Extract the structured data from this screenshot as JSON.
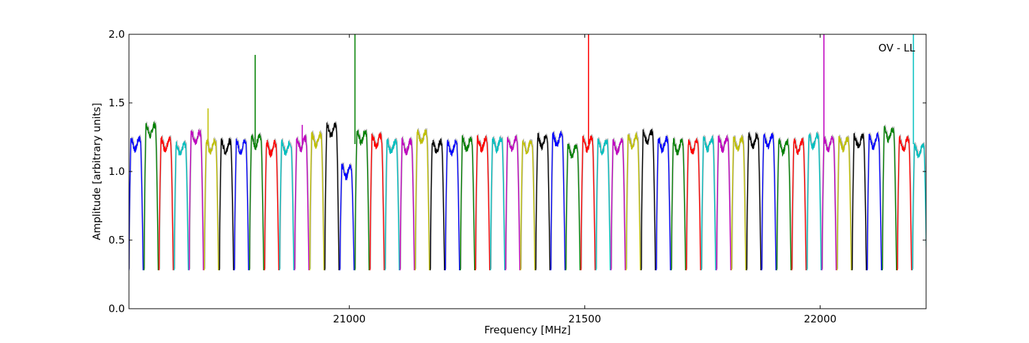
{
  "chart_data": {
    "type": "line",
    "xlabel": "Frequency [MHz]",
    "ylabel": "Amplitude [arbitrary units]",
    "annotation": "OV - LL",
    "annotation_position": "top-right",
    "xlim": [
      20532,
      22225
    ],
    "ylim": [
      0.0,
      2.0
    ],
    "xticks": [
      21000,
      21500,
      22000
    ],
    "xtick_labels": [
      "21000",
      "21500",
      "22000"
    ],
    "yticks": [
      0.0,
      0.5,
      1.0,
      1.5,
      2.0
    ],
    "ytick_labels": [
      "0.0",
      "0.5",
      "1.0",
      "1.5",
      "2.0"
    ],
    "grid": false,
    "legend": false,
    "background_series_color": "#bbbbbb",
    "color_cycle": [
      "#0000ff",
      "#008000",
      "#ff0000",
      "#00bfbf",
      "#bf00bf",
      "#bfbf00",
      "#000000"
    ],
    "channel_width_mhz": 32,
    "band_start_mhz": [
      20532,
      20564,
      20596,
      20628,
      20660,
      20692,
      20724,
      20756,
      20788,
      20820,
      20852,
      20884,
      20916,
      20948,
      20980,
      21012,
      21044,
      21076,
      21108,
      21140,
      21172,
      21204,
      21236,
      21268,
      21300,
      21332,
      21364,
      21396,
      21428,
      21460,
      21492,
      21524,
      21556,
      21588,
      21620,
      21652,
      21684,
      21716,
      21748,
      21780,
      21812,
      21844,
      21876,
      21908,
      21940,
      21972,
      22004,
      22036,
      22068,
      22100,
      22132,
      22164,
      22196
    ],
    "band_plateau": [
      1.2,
      1.3,
      1.2,
      1.16,
      1.25,
      1.18,
      1.18,
      1.18,
      1.22,
      1.17,
      1.17,
      1.2,
      1.23,
      1.3,
      1.0,
      1.25,
      1.22,
      1.18,
      1.18,
      1.25,
      1.18,
      1.17,
      1.2,
      1.2,
      1.2,
      1.2,
      1.18,
      1.22,
      1.23,
      1.15,
      1.2,
      1.18,
      1.18,
      1.22,
      1.25,
      1.2,
      1.18,
      1.18,
      1.2,
      1.2,
      1.2,
      1.22,
      1.22,
      1.18,
      1.18,
      1.22,
      1.2,
      1.2,
      1.22,
      1.22,
      1.27,
      1.2,
      1.15
    ],
    "band_min": 0.28,
    "spikes": [
      {
        "x": 20700,
        "y": 1.46
      },
      {
        "x": 20800,
        "y": 1.85
      },
      {
        "x": 20900,
        "y": 1.34
      },
      {
        "x": 21012,
        "y": 2.0
      },
      {
        "x": 21508,
        "y": 2.0
      },
      {
        "x": 22008,
        "y": 2.0
      },
      {
        "x": 22198,
        "y": 2.0
      }
    ]
  }
}
